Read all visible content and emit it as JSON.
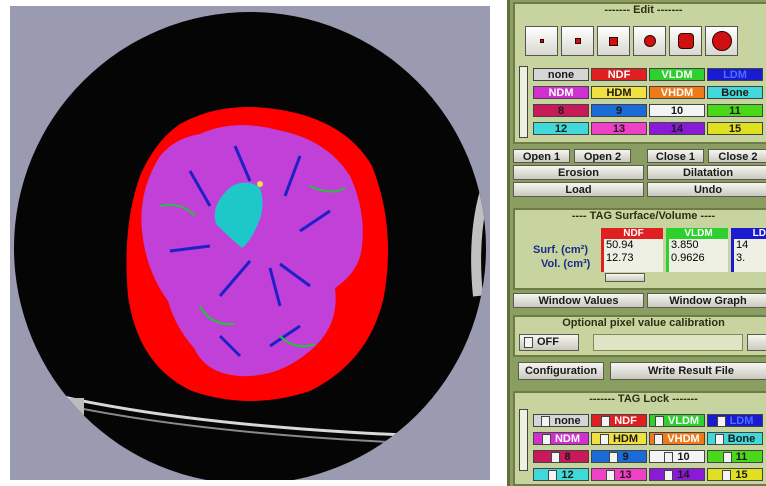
{
  "edit": {
    "title": "------- Edit -------",
    "brush_sizes": [
      "brush-size-1",
      "brush-size-2",
      "brush-size-3",
      "brush-size-4",
      "brush-size-5",
      "brush-size-6"
    ],
    "tags": [
      {
        "label": "none",
        "bg": "#d6d6d6",
        "fg": "#1a1a1a"
      },
      {
        "label": "NDF",
        "bg": "#e02020",
        "fg": "#ffffff"
      },
      {
        "label": "VLDM",
        "bg": "#2ed02e",
        "fg": "#ffffff"
      },
      {
        "label": "LDM",
        "bg": "#1a1ad0",
        "fg": "#4a70ff"
      },
      {
        "label": "NDM",
        "bg": "#d030d0",
        "fg": "#ffffff"
      },
      {
        "label": "HDM",
        "bg": "#f0e040",
        "fg": "#1a1a1a"
      },
      {
        "label": "VHDM",
        "bg": "#f07a1a",
        "fg": "#ffffff"
      },
      {
        "label": "Bone",
        "bg": "#40d8d8",
        "fg": "#1a1a1a"
      },
      {
        "label": "8",
        "bg": "#c81a5a",
        "fg": "#1a1a1a"
      },
      {
        "label": "9",
        "bg": "#1a6ad8",
        "fg": "#1a1a1a"
      },
      {
        "label": "10",
        "bg": "#f4f4f4",
        "fg": "#1a1a1a"
      },
      {
        "label": "11",
        "bg": "#4ad81a",
        "fg": "#1a1a1a"
      },
      {
        "label": "12",
        "bg": "#40d8d8",
        "fg": "#1a1a1a"
      },
      {
        "label": "13",
        "bg": "#f040c8",
        "fg": "#1a1a1a"
      },
      {
        "label": "14",
        "bg": "#8a1ad8",
        "fg": "#1a1a1a"
      },
      {
        "label": "15",
        "bg": "#e0e020",
        "fg": "#1a1a1a"
      }
    ],
    "morph_buttons": [
      "Open 1",
      "Open 2",
      "Close 1",
      "Close 2"
    ],
    "erosion": "Erosion",
    "dilatation": "Dilatation",
    "load": "Load",
    "undo": "Undo"
  },
  "surface": {
    "title": "---- TAG Surface/Volume ----",
    "surf_label": "Surf. (cm²)",
    "vol_label": "Vol. (cm³)",
    "columns": [
      {
        "name": "NDF",
        "color": "#e02020",
        "surf": "50.94",
        "vol": "12.73"
      },
      {
        "name": "VLDM",
        "color": "#2ed02e",
        "surf": "3.850",
        "vol": "0.9626"
      },
      {
        "name": "LDM",
        "color": "#1a1ad0",
        "surf": "14",
        "vol": "3."
      }
    ],
    "window_values": "Window Values",
    "window_graph": "Window Graph"
  },
  "calibration": {
    "title": "Optional pixel value calibration",
    "off": "OFF",
    "configuration": "Configuration",
    "write_result": "Write Result File"
  },
  "lock": {
    "title": "------- TAG Lock -------",
    "tags": [
      {
        "label": "none",
        "bg": "#d6d6d6",
        "fg": "#1a1a1a"
      },
      {
        "label": "NDF",
        "bg": "#e02020",
        "fg": "#ffffff"
      },
      {
        "label": "VLDM",
        "bg": "#2ed02e",
        "fg": "#ffffff"
      },
      {
        "label": "LDM",
        "bg": "#1a1ad0",
        "fg": "#4a70ff"
      },
      {
        "label": "NDM",
        "bg": "#d030d0",
        "fg": "#ffffff"
      },
      {
        "label": "HDM",
        "bg": "#f0e040",
        "fg": "#1a1a1a"
      },
      {
        "label": "VHDM",
        "bg": "#f07a1a",
        "fg": "#ffffff"
      },
      {
        "label": "Bone",
        "bg": "#40d8d8",
        "fg": "#1a1a1a"
      },
      {
        "label": "8",
        "bg": "#c81a5a",
        "fg": "#1a1a1a"
      },
      {
        "label": "9",
        "bg": "#1a6ad8",
        "fg": "#1a1a1a"
      },
      {
        "label": "10",
        "bg": "#f4f4f4",
        "fg": "#1a1a1a"
      },
      {
        "label": "11",
        "bg": "#4ad81a",
        "fg": "#1a1a1a"
      },
      {
        "label": "12",
        "bg": "#40d8d8",
        "fg": "#1a1a1a"
      },
      {
        "label": "13",
        "bg": "#f040c8",
        "fg": "#1a1a1a"
      },
      {
        "label": "14",
        "bg": "#8a1ad8",
        "fg": "#1a1a1a"
      },
      {
        "label": "15",
        "bg": "#e0e020",
        "fg": "#1a1a1a"
      }
    ]
  }
}
